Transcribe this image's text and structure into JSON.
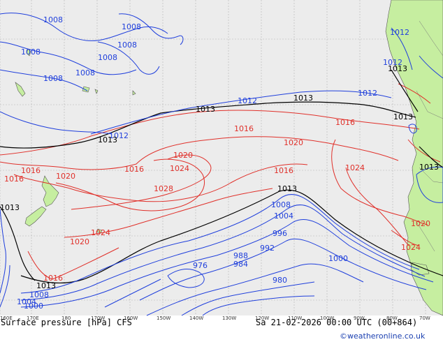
{
  "map": {
    "title": "Surface pressure [hPa] CFS",
    "valid_time": "Sa 21-02-2026 00:00 UTC (00+864)",
    "credit": "©weatheronline.co.uk",
    "colors": {
      "background": "#ececec",
      "land": "#c6eea0",
      "grid": "#b4b4b4",
      "low_isobar": "#1f3fdc",
      "high_isobar": "#e0302a",
      "neutral_isobar": "#000000"
    },
    "longitude_labels": [
      "160E",
      "170E",
      "180",
      "170W",
      "160W",
      "150W",
      "140W",
      "130W",
      "120W",
      "110W",
      "100W",
      "90W",
      "80W",
      "70W"
    ],
    "isobar_labels": {
      "p1008": "1008",
      "p1012": "1012",
      "p1013": "1013",
      "p1016": "1016",
      "p1020": "1020",
      "p1024": "1024",
      "p1028": "1028",
      "p1004": "1004",
      "p1000": "1000",
      "p996": "996",
      "p992": "992",
      "p988": "988",
      "p984": "984",
      "p980": "980",
      "p976": "976"
    }
  }
}
